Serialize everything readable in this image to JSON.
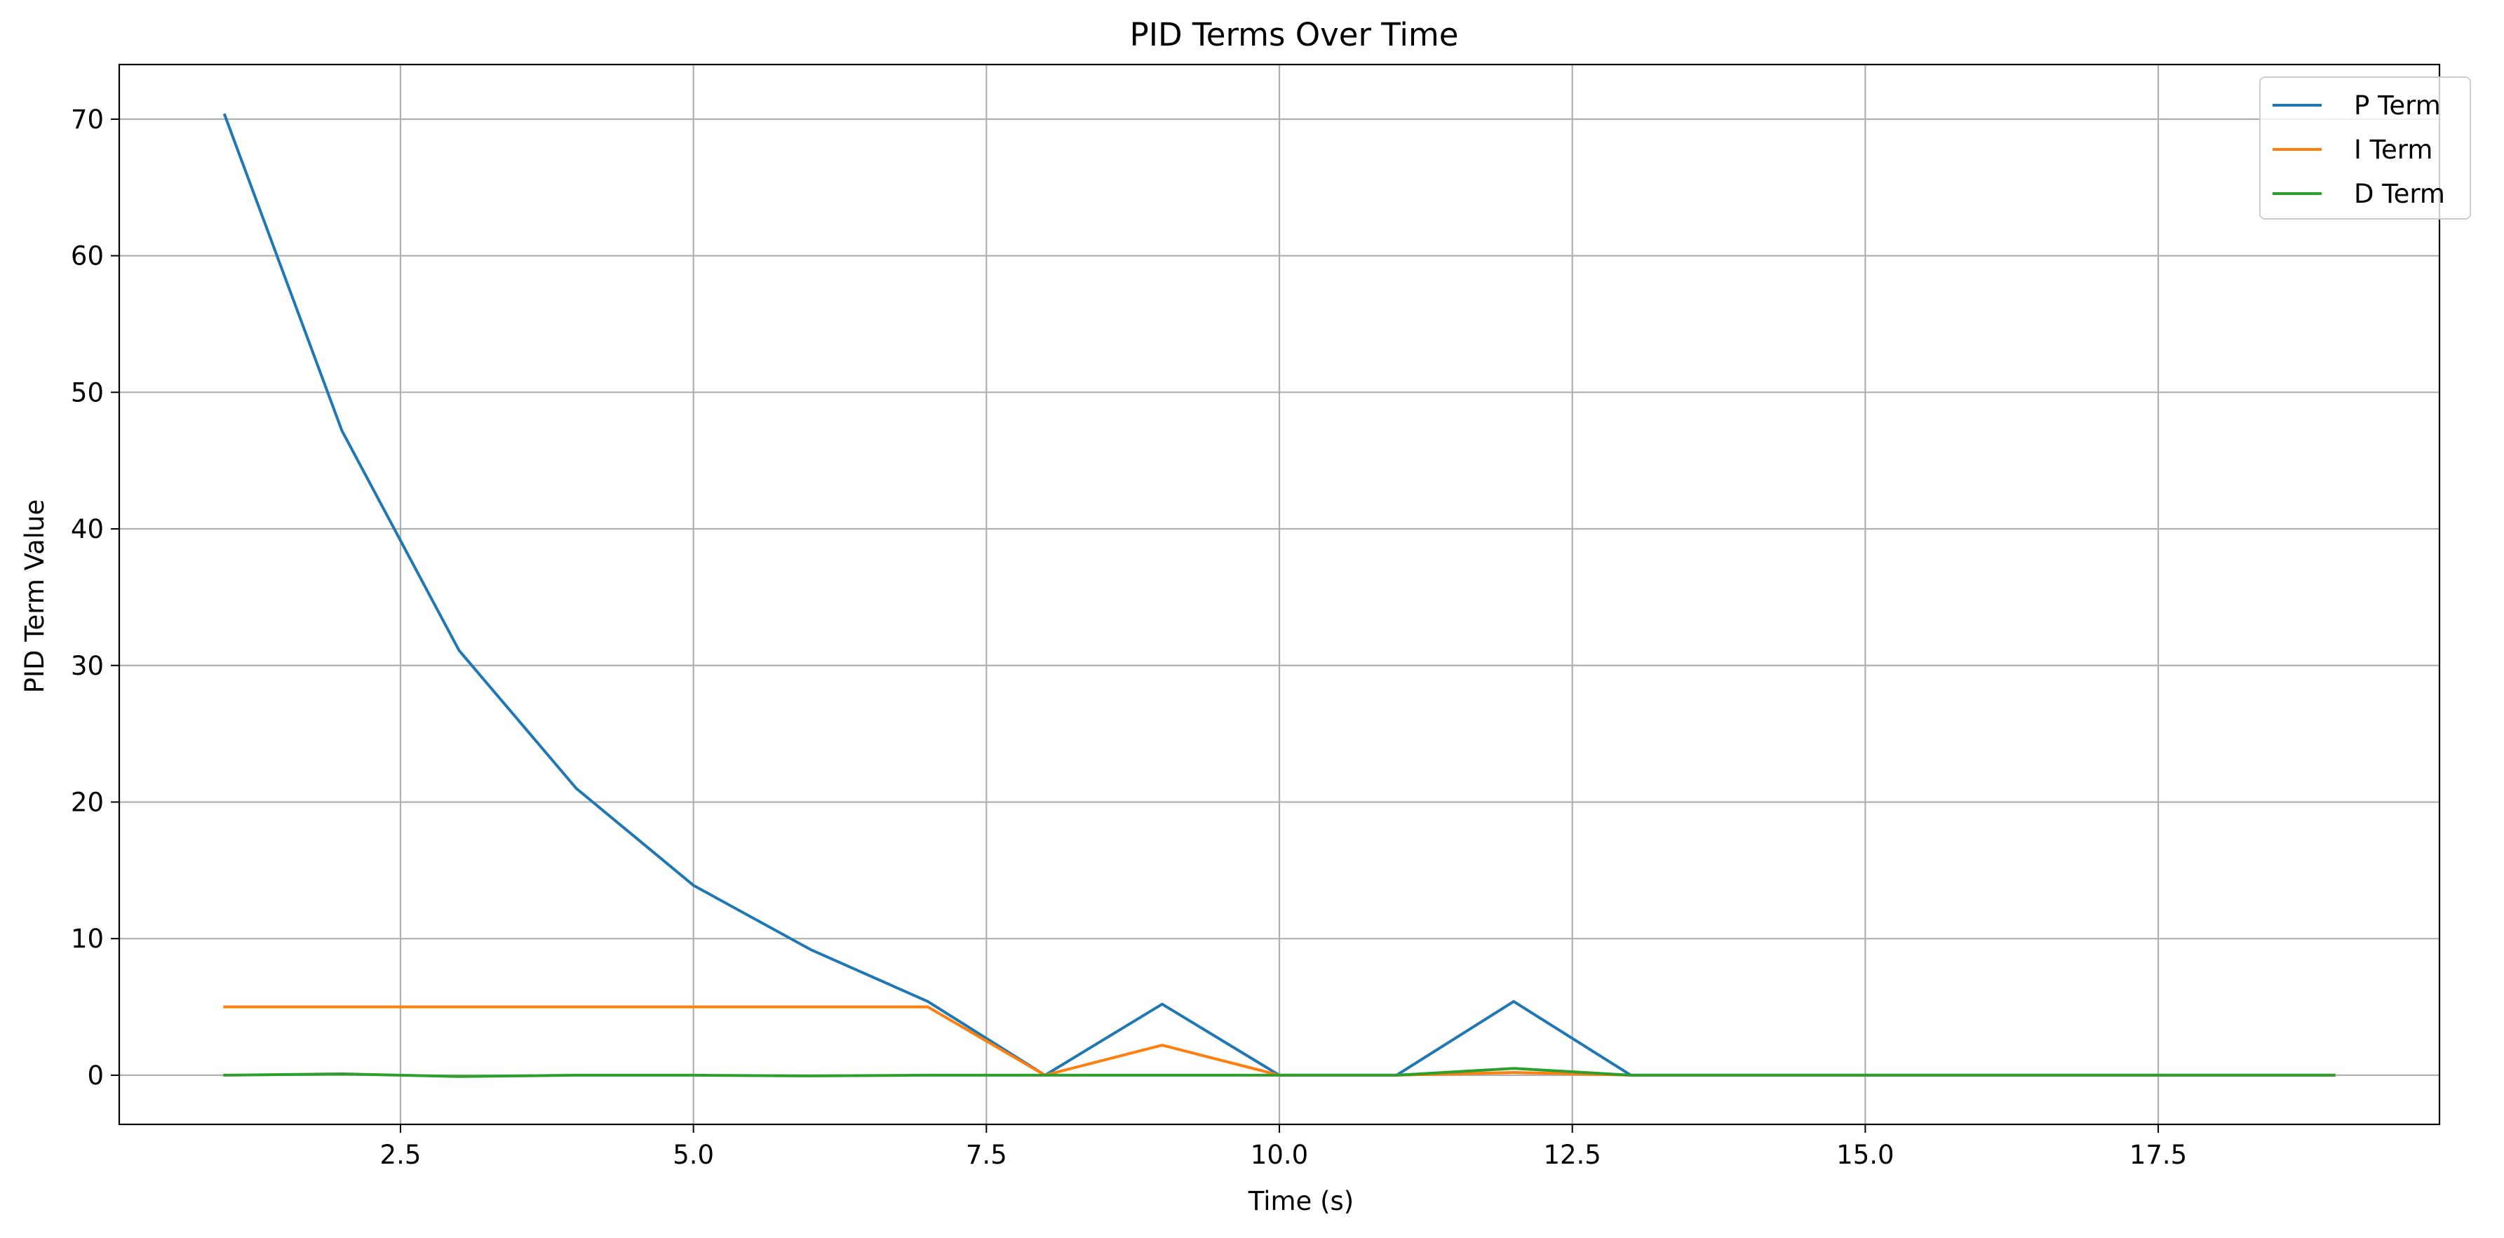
{
  "chart_data": {
    "type": "line",
    "title": "PID Terms Over Time",
    "xlabel": "Time (s)",
    "ylabel": "PID Term Value",
    "xlim": [
      0.1,
      19.9
    ],
    "ylim": [
      -3.6,
      74.0
    ],
    "x_ticks": [
      2.5,
      5.0,
      7.5,
      10.0,
      12.5,
      15.0,
      17.5
    ],
    "x_tick_labels": [
      "2.5",
      "5.0",
      "7.5",
      "10.0",
      "12.5",
      "15.0",
      "17.5"
    ],
    "y_ticks": [
      0,
      10,
      20,
      30,
      40,
      50,
      60,
      70
    ],
    "y_tick_labels": [
      "0",
      "10",
      "20",
      "30",
      "40",
      "50",
      "60",
      "70"
    ],
    "grid": true,
    "legend_position": "top-right",
    "x": [
      1,
      2,
      3,
      4,
      5,
      6,
      7,
      8,
      9,
      10,
      11,
      12,
      13,
      14,
      15,
      16,
      17,
      18,
      19
    ],
    "series": [
      {
        "name": "P Term",
        "color": "#1f77b4",
        "values": [
          70.3,
          47.2,
          31.1,
          21.0,
          13.9,
          9.2,
          5.4,
          0.0,
          5.2,
          0.0,
          0.0,
          5.4,
          0.0,
          0.0,
          0.0,
          0.0,
          0.0,
          0.0,
          0.0
        ]
      },
      {
        "name": "I Term",
        "color": "#ff7f0e",
        "values": [
          5.0,
          5.0,
          5.0,
          5.0,
          5.0,
          5.0,
          5.0,
          0.0,
          2.2,
          0.0,
          0.0,
          0.2,
          0.0,
          0.0,
          0.0,
          0.0,
          0.0,
          0.0,
          0.0
        ]
      },
      {
        "name": "D Term",
        "color": "#2ca02c",
        "values": [
          0.0,
          0.1,
          -0.1,
          0.0,
          0.0,
          -0.05,
          0.0,
          0.0,
          0.0,
          0.0,
          0.0,
          0.5,
          0.0,
          0.0,
          0.0,
          0.0,
          0.0,
          0.0,
          0.0
        ]
      }
    ]
  }
}
